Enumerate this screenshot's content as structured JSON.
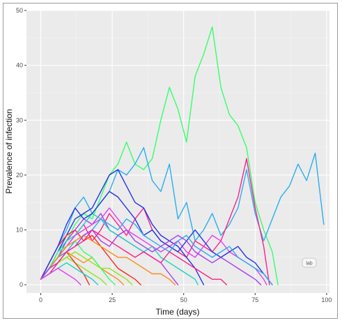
{
  "chart_data": {
    "type": "line",
    "title": "",
    "xlabel": "Time (days)",
    "ylabel": "Prevalence of infection",
    "xlim": [
      -5,
      101
    ],
    "ylim": [
      -1.5,
      50
    ],
    "xticks": [
      0,
      25,
      50,
      75,
      100
    ],
    "yticks": [
      0,
      10,
      20,
      30,
      40,
      50
    ],
    "grid": true,
    "legend": "none",
    "panel_background": "#ebebeb",
    "grid_color": "#ffffff",
    "palette": [
      "#35ff6a",
      "#29aef0",
      "#ff1f8c",
      "#2335e6",
      "#ff2a1f",
      "#a53ef2",
      "#ff8a1f",
      "#8fe61c",
      "#19d4c2",
      "#e63ef2"
    ],
    "series": [
      {
        "color_index": 0,
        "x": [
          0,
          3,
          6,
          9,
          12,
          15,
          18,
          21,
          24,
          27,
          30,
          33,
          36,
          39,
          42,
          45,
          48,
          51,
          54,
          57,
          60,
          63,
          66,
          69,
          72,
          75,
          78,
          81,
          83
        ],
        "y": [
          1,
          3,
          5,
          8,
          11,
          13,
          12,
          16,
          20,
          22,
          26,
          22,
          21,
          23,
          30,
          36,
          32,
          26,
          38,
          42,
          47,
          36,
          31,
          29,
          25,
          15,
          10,
          6,
          0
        ]
      },
      {
        "color_index": 1,
        "x": [
          0,
          3,
          6,
          9,
          12,
          15,
          18,
          21,
          24,
          27,
          30,
          33,
          36,
          39,
          42,
          45,
          48,
          51,
          54,
          57,
          60,
          63,
          66,
          69,
          72,
          75,
          78,
          81,
          84,
          87,
          90,
          93,
          96,
          99
        ],
        "y": [
          1,
          4,
          7,
          10,
          14,
          16,
          13,
          15,
          17,
          21,
          20,
          22,
          25,
          19,
          17,
          22,
          12,
          15,
          8,
          10,
          13,
          9,
          11,
          14,
          21,
          13,
          8,
          12,
          16,
          18,
          22,
          19,
          24,
          11
        ]
      },
      {
        "color_index": 2,
        "x": [
          0,
          3,
          6,
          9,
          12,
          15,
          18,
          21,
          24,
          27,
          30,
          33,
          36,
          39,
          42,
          45,
          48,
          51,
          54,
          57,
          60,
          63,
          66,
          69,
          72,
          75,
          78,
          80
        ],
        "y": [
          1,
          3,
          5,
          7,
          9,
          11,
          8,
          10,
          13,
          11,
          9,
          12,
          14,
          10,
          8,
          7,
          6,
          5,
          8,
          7,
          6,
          8,
          12,
          16,
          23,
          14,
          7,
          0
        ]
      },
      {
        "color_index": 3,
        "x": [
          0,
          3,
          6,
          9,
          12,
          15,
          18,
          21,
          24,
          27,
          30,
          33,
          36,
          39,
          42,
          45,
          48,
          51,
          54,
          57
        ],
        "y": [
          1,
          3,
          6,
          9,
          12,
          13,
          14,
          17,
          20,
          21,
          18,
          15,
          14,
          11,
          9,
          8,
          7,
          5,
          3,
          0
        ]
      },
      {
        "color_index": 4,
        "x": [
          0,
          3,
          6,
          9,
          12,
          15,
          18,
          21,
          24,
          27,
          30,
          33,
          35
        ],
        "y": [
          1,
          4,
          7,
          9,
          10,
          8,
          9,
          7,
          5,
          3,
          2,
          1,
          0
        ]
      },
      {
        "color_index": 5,
        "x": [
          0,
          3,
          6,
          9,
          12,
          15,
          18,
          21,
          24,
          27,
          30,
          33,
          36,
          39,
          42,
          45,
          48
        ],
        "y": [
          1,
          3,
          5,
          8,
          10,
          12,
          11,
          13,
          10,
          9,
          8,
          7,
          6,
          5,
          4,
          2,
          0
        ]
      },
      {
        "color_index": 6,
        "x": [
          0,
          3,
          6,
          9,
          12,
          15,
          18,
          21,
          24,
          27,
          29
        ],
        "y": [
          1,
          3,
          4,
          6,
          5,
          4,
          5,
          3,
          2,
          1,
          0
        ]
      },
      {
        "color_index": 7,
        "x": [
          0,
          3,
          6,
          9,
          12,
          15,
          18,
          21,
          23
        ],
        "y": [
          1,
          2,
          4,
          5,
          4,
          3,
          2,
          1,
          0
        ]
      },
      {
        "color_index": 8,
        "x": [
          0,
          3,
          6,
          9,
          12,
          15,
          18,
          21,
          24,
          27,
          30,
          33,
          36,
          39,
          42,
          45,
          48,
          51,
          54,
          55
        ],
        "y": [
          1,
          3,
          6,
          8,
          9,
          11,
          13,
          12,
          10,
          9,
          8,
          7,
          6,
          7,
          5,
          4,
          3,
          2,
          1,
          0
        ]
      },
      {
        "color_index": 9,
        "x": [
          0,
          3,
          6,
          9,
          12,
          15,
          18,
          21,
          24,
          27,
          30,
          33,
          36,
          39,
          42,
          45,
          48,
          51,
          54,
          57,
          60,
          63,
          66,
          69,
          72,
          75,
          78,
          79
        ],
        "y": [
          1,
          3,
          5,
          7,
          9,
          10,
          11,
          12,
          14,
          12,
          10,
          9,
          8,
          7,
          6,
          7,
          8,
          6,
          5,
          7,
          9,
          8,
          6,
          5,
          4,
          3,
          1,
          0
        ]
      },
      {
        "color_index": 0,
        "x": [
          0,
          3,
          6,
          9,
          12,
          15,
          18,
          21,
          24,
          26
        ],
        "y": [
          1,
          3,
          6,
          7,
          8,
          6,
          5,
          3,
          1,
          0
        ]
      },
      {
        "color_index": 3,
        "x": [
          0,
          3,
          6,
          9,
          12,
          15,
          18,
          21,
          24,
          27,
          30,
          33,
          36,
          39,
          42,
          45,
          48,
          51,
          54,
          57,
          60,
          63,
          66,
          69,
          72,
          75,
          78,
          81
        ],
        "y": [
          1,
          4,
          7,
          11,
          14,
          12,
          13,
          15,
          17,
          16,
          14,
          12,
          9,
          10,
          8,
          7,
          6,
          8,
          10,
          8,
          6,
          5,
          6,
          7,
          5,
          4,
          2,
          0
        ]
      },
      {
        "color_index": 4,
        "x": [
          0,
          3,
          6,
          9,
          12,
          15,
          17
        ],
        "y": [
          1,
          3,
          5,
          6,
          4,
          2,
          0
        ]
      },
      {
        "color_index": 1,
        "x": [
          0,
          3,
          6,
          9,
          12,
          15,
          18,
          21,
          24,
          27,
          30,
          33,
          36,
          39,
          42,
          45,
          48,
          51,
          54,
          57,
          60,
          63,
          66,
          69,
          72,
          75,
          78,
          81
        ],
        "y": [
          1,
          3,
          5,
          6,
          8,
          9,
          10,
          12,
          11,
          10,
          12,
          11,
          9,
          8,
          7,
          6,
          8,
          9,
          7,
          6,
          5,
          6,
          7,
          5,
          4,
          3,
          2,
          0
        ]
      },
      {
        "color_index": 6,
        "x": [
          0,
          3,
          6,
          9,
          12,
          15,
          18,
          21,
          24,
          27,
          30,
          33,
          36,
          39,
          42,
          45,
          47
        ],
        "y": [
          1,
          3,
          5,
          7,
          8,
          9,
          8,
          7,
          6,
          5,
          5,
          4,
          3,
          2,
          2,
          1,
          0
        ]
      },
      {
        "color_index": 5,
        "x": [
          0,
          3,
          6,
          9,
          12,
          15,
          18,
          21,
          24,
          27,
          30,
          33,
          36,
          39,
          42,
          45,
          48,
          51,
          54,
          57,
          60,
          63,
          66,
          69,
          72,
          75,
          77
        ],
        "y": [
          1,
          3,
          4,
          6,
          7,
          9,
          10,
          8,
          7,
          9,
          10,
          8,
          7,
          6,
          7,
          8,
          9,
          8,
          6,
          5,
          4,
          5,
          4,
          3,
          2,
          1,
          0
        ]
      },
      {
        "color_index": 7,
        "x": [
          0,
          3,
          6,
          9,
          12,
          15,
          18,
          21,
          24,
          27,
          30,
          32
        ],
        "y": [
          1,
          2,
          4,
          5,
          6,
          5,
          4,
          3,
          3,
          2,
          1,
          0
        ]
      },
      {
        "color_index": 2,
        "x": [
          0,
          3,
          6,
          9,
          12,
          15,
          18,
          21,
          24,
          27,
          30,
          33,
          36,
          39,
          42,
          45,
          48,
          51,
          54,
          57,
          60,
          63,
          65
        ],
        "y": [
          1,
          2,
          4,
          6,
          7,
          8,
          10,
          9,
          8,
          7,
          6,
          5,
          6,
          5,
          4,
          6,
          5,
          4,
          3,
          2,
          1,
          1,
          0
        ]
      },
      {
        "color_index": 8,
        "x": [
          0,
          3,
          6,
          9,
          12,
          15,
          18,
          20
        ],
        "y": [
          1,
          2,
          3,
          4,
          3,
          2,
          1,
          0
        ]
      },
      {
        "color_index": 9,
        "x": [
          0,
          3,
          6,
          9,
          12,
          14
        ],
        "y": [
          1,
          2,
          3,
          2,
          1,
          0
        ]
      }
    ]
  },
  "badge": {
    "label": "lab"
  }
}
